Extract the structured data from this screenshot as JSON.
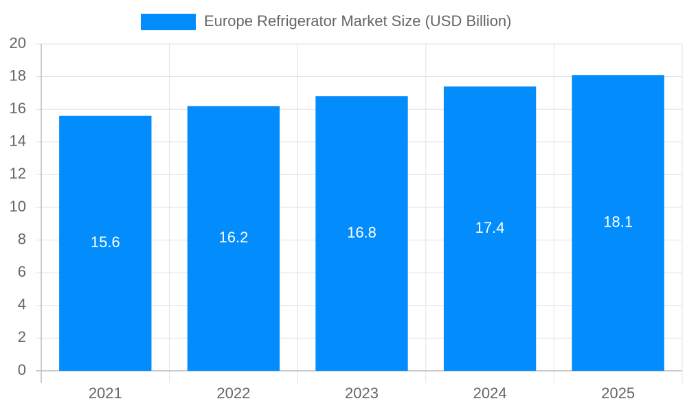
{
  "chart_data": {
    "type": "bar",
    "categories": [
      "2021",
      "2022",
      "2023",
      "2024",
      "2025"
    ],
    "series": [
      {
        "name": "Europe Refrigerator Market Size (USD Billion)",
        "color": "#038cfc",
        "values": [
          15.6,
          16.2,
          16.8,
          17.4,
          18.1
        ]
      }
    ],
    "ylim": [
      0,
      20
    ],
    "yticks": [
      0,
      2,
      4,
      6,
      8,
      10,
      12,
      14,
      16,
      18,
      20
    ],
    "grid": true,
    "legend": "top",
    "data_labels": true
  }
}
